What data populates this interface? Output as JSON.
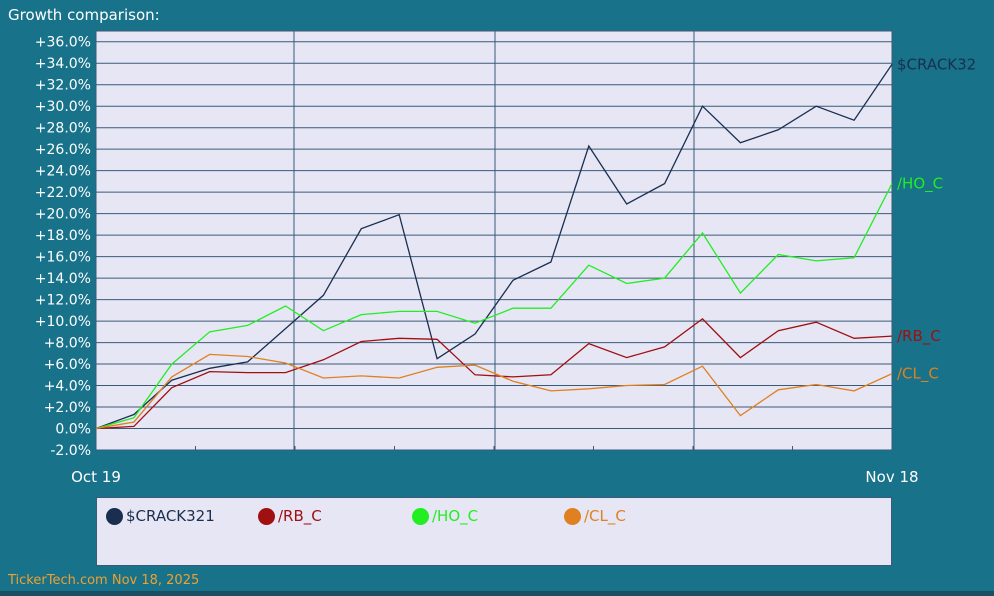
{
  "title": "Growth comparison:",
  "footer": "TickerTech.com  Nov 18, 2025",
  "chart_data": {
    "type": "line",
    "title": "Growth comparison:",
    "x_start_label": "Oct 19",
    "x_end_label": "Nov 18",
    "ylim": [
      -2,
      37
    ],
    "y_ticks": [
      -2,
      0,
      2,
      4,
      6,
      8,
      10,
      12,
      14,
      16,
      18,
      20,
      22,
      24,
      26,
      28,
      30,
      32,
      34,
      36
    ],
    "y_tick_labels": [
      "-2.0%",
      "0.0%",
      "+2.0%",
      "+4.0%",
      "+6.0%",
      "+8.0%",
      "+10.0%",
      "+12.0%",
      "+14.0%",
      "+16.0%",
      "+18.0%",
      "+20.0%",
      "+22.0%",
      "+24.0%",
      "+26.0%",
      "+28.0%",
      "+30.0%",
      "+32.0%",
      "+34.0%",
      "+36.0%"
    ],
    "grid": true,
    "legend_position": "bottom",
    "x": [
      0,
      1,
      2,
      3,
      4,
      5,
      6,
      7,
      8,
      9,
      10,
      11,
      12,
      13,
      14,
      15,
      16,
      17,
      18,
      19,
      20,
      21
    ],
    "series": [
      {
        "name": "$CRACK321",
        "end_label": "$CRACK32",
        "color": "#1a2f4f",
        "values": [
          0,
          1.3,
          4.5,
          5.6,
          6.2,
          9.3,
          12.4,
          18.6,
          19.9,
          6.5,
          8.8,
          13.8,
          15.5,
          26.3,
          20.9,
          22.8,
          30.0,
          26.6,
          27.8,
          30.0,
          28.7,
          33.9
        ]
      },
      {
        "name": "/HO_C",
        "end_label": "/HO_C",
        "color": "#22ee22",
        "values": [
          0,
          1.0,
          6.0,
          9.0,
          9.6,
          11.4,
          9.1,
          10.6,
          10.9,
          10.9,
          9.8,
          11.2,
          11.2,
          15.2,
          13.5,
          14.0,
          18.2,
          12.6,
          16.2,
          15.6,
          15.9,
          22.8
        ]
      },
      {
        "name": "/RB_C",
        "end_label": "/RB_C",
        "color": "#a01010",
        "values": [
          0,
          0.2,
          3.8,
          5.3,
          5.2,
          5.2,
          6.4,
          8.1,
          8.4,
          8.3,
          5.0,
          4.8,
          5.0,
          7.9,
          6.6,
          7.6,
          10.2,
          6.6,
          9.1,
          9.9,
          8.4,
          8.6
        ]
      },
      {
        "name": "/CL_C",
        "end_label": "/CL_C",
        "color": "#e08020",
        "values": [
          0,
          0.6,
          4.8,
          6.9,
          6.7,
          6.1,
          4.7,
          4.9,
          4.7,
          5.7,
          5.9,
          4.4,
          3.5,
          3.7,
          4.0,
          4.1,
          5.8,
          1.2,
          3.6,
          4.1,
          3.5,
          5.1
        ]
      }
    ]
  },
  "legend": [
    {
      "label": "$CRACK321",
      "color": "#1a2f4f"
    },
    {
      "label": "/RB_C",
      "color": "#a01010"
    },
    {
      "label": "/HO_C",
      "color": "#22ee22"
    },
    {
      "label": "/CL_C",
      "color": "#e08020"
    }
  ]
}
